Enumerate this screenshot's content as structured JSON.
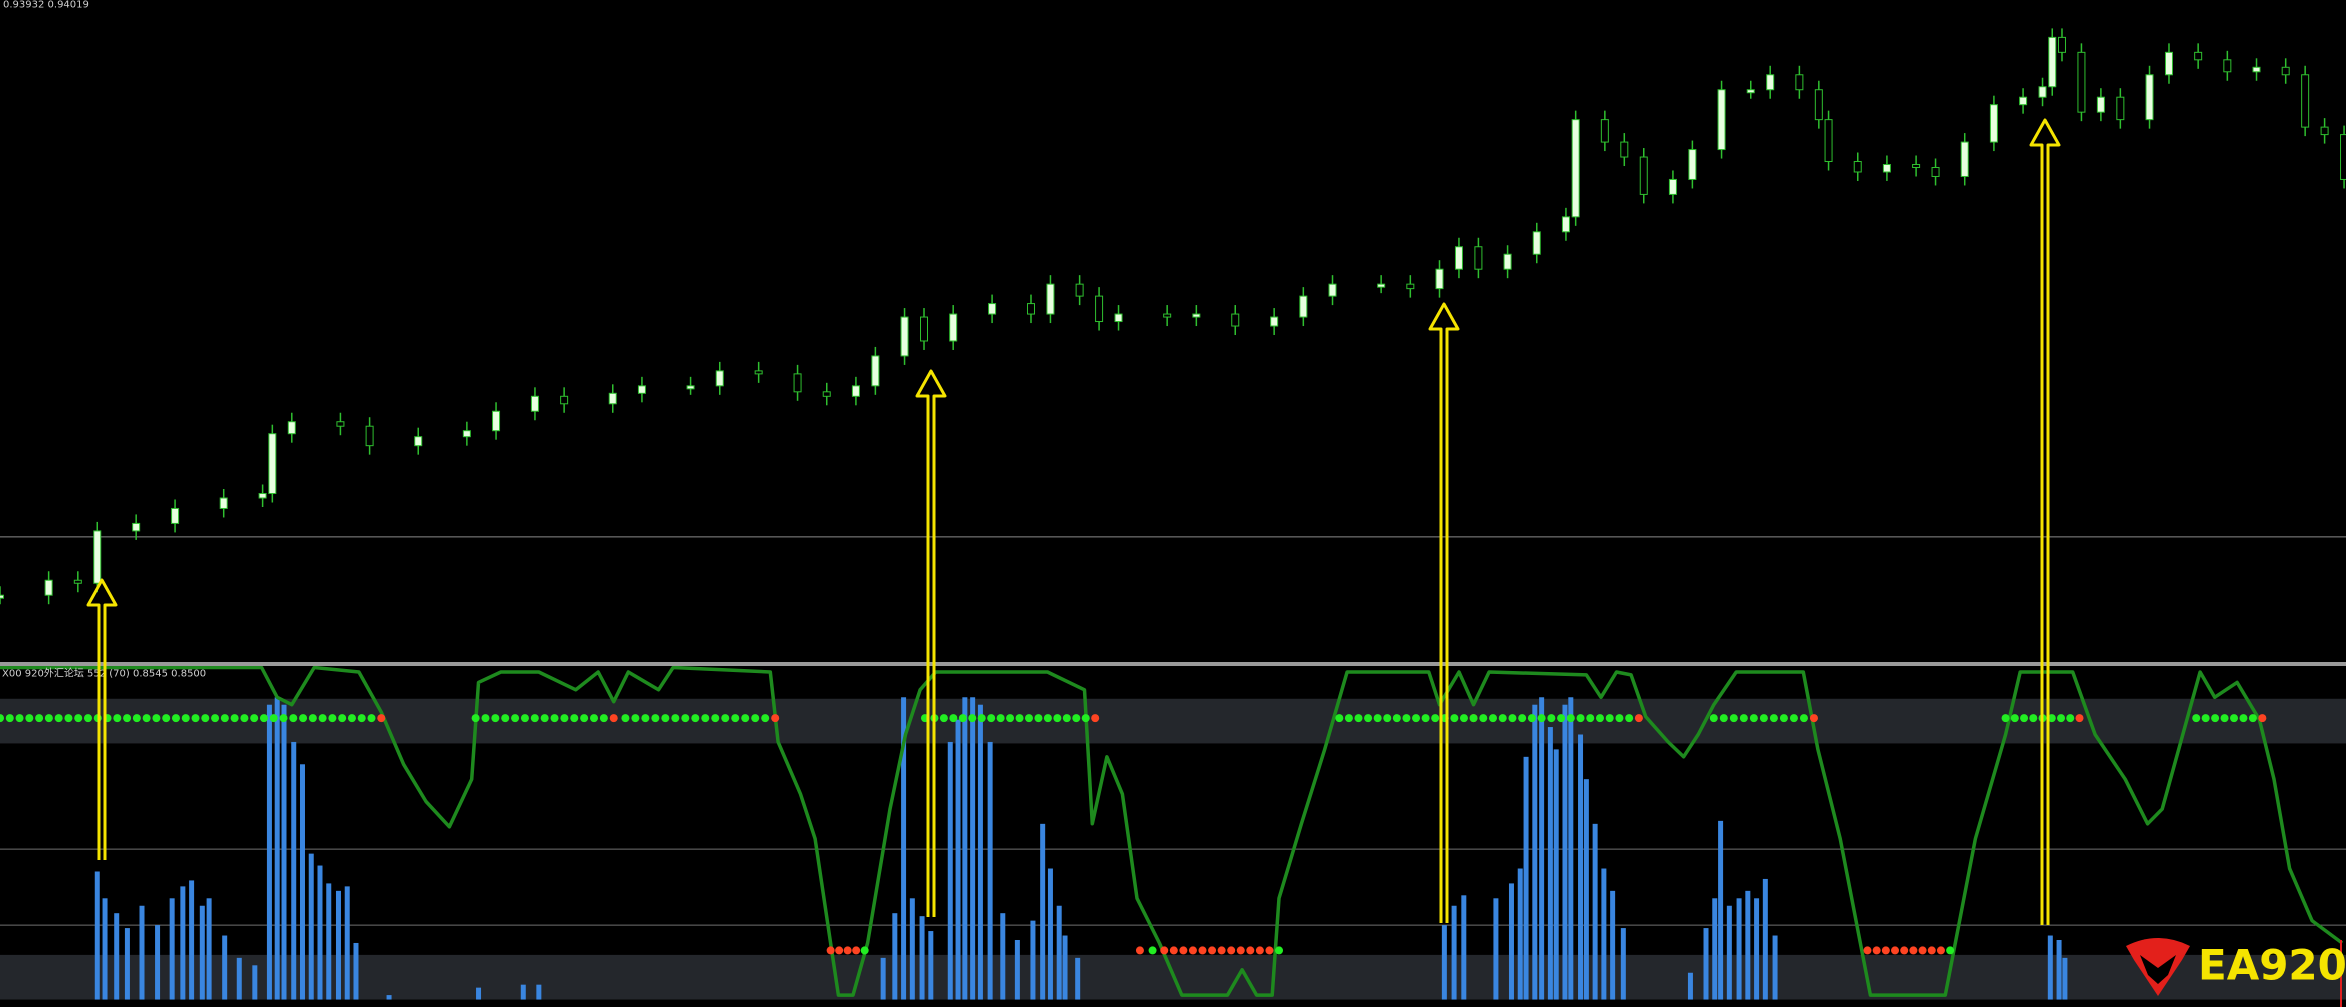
{
  "chart_data": [
    {
      "type": "candlestick",
      "label": "0.93932 0.94019",
      "x": [
        0,
        5,
        8,
        10,
        14,
        18,
        23,
        27,
        28,
        30,
        35,
        38,
        43,
        48,
        51,
        55,
        58,
        63,
        66,
        71,
        74,
        78,
        82,
        85,
        88,
        90,
        93,
        95,
        98,
        102,
        106,
        108,
        111,
        113,
        115,
        120,
        123,
        127,
        131,
        134,
        137,
        142,
        145,
        148,
        150,
        152,
        155,
        158,
        161,
        162,
        165,
        167,
        169,
        172,
        174,
        177,
        180,
        182,
        185,
        187,
        188,
        191,
        194,
        197,
        199,
        202,
        205,
        208,
        210,
        211,
        212,
        214,
        216,
        218,
        221,
        223,
        226,
        229,
        232,
        235,
        237,
        239,
        241
      ],
      "values": [
        52,
        62,
        60,
        95,
        100,
        110,
        117,
        120,
        160,
        168,
        165,
        152,
        158,
        162,
        175,
        185,
        180,
        187,
        192,
        192,
        202,
        200,
        188,
        185,
        192,
        212,
        238,
        222,
        240,
        247,
        240,
        260,
        252,
        235,
        240,
        238,
        240,
        232,
        238,
        252,
        260,
        260,
        257,
        270,
        285,
        270,
        280,
        295,
        305,
        370,
        355,
        345,
        320,
        330,
        350,
        390,
        390,
        400,
        390,
        370,
        342,
        335,
        340,
        338,
        332,
        355,
        380,
        385,
        392,
        425,
        415,
        375,
        385,
        370,
        400,
        415,
        410,
        402,
        405,
        400,
        365,
        360,
        330
      ],
      "color": "#2fbf2f",
      "up_color": "#e8ffe0",
      "xlim": [
        0,
        241.2
      ],
      "ylim": [
        6,
        450
      ],
      "hline": 91
    },
    {
      "type": "histogram-oscillator",
      "label": "X00 920外汇论坛 552 (70) 0.8545 0.8500",
      "xlim": [
        0,
        241.2
      ],
      "ylim": [
        -5,
        224
      ],
      "bands": [
        [
          172,
          202
        ],
        [
          0,
          30
        ]
      ],
      "levels": [
        101,
        50
      ],
      "histogram": {
        "color": "#3a86e0",
        "x": [
          10.0,
          10.8,
          12.0,
          13.1,
          14.6,
          16.2,
          17.7,
          18.8,
          19.7,
          20.8,
          21.5,
          23.1,
          24.6,
          26.2,
          27.7,
          28.5,
          29.2,
          30.2,
          31.1,
          32.0,
          32.9,
          33.8,
          34.8,
          35.7,
          36.6,
          40.0,
          49.2,
          53.8,
          55.4,
          90.8,
          92.0,
          92.9,
          93.8,
          94.8,
          95.7,
          97.7,
          98.5,
          99.2,
          100.0,
          100.8,
          101.8,
          103.1,
          104.6,
          106.2,
          107.2,
          108.0,
          108.9,
          109.5,
          110.8,
          148.5,
          149.5,
          150.5,
          153.8,
          155.4,
          156.3,
          156.9,
          157.8,
          158.5,
          159.4,
          160.0,
          160.9,
          161.5,
          162.5,
          163.1,
          164.0,
          164.9,
          165.8,
          166.9,
          173.8,
          175.4,
          176.3,
          176.9,
          177.8,
          178.8,
          179.7,
          180.6,
          181.5,
          182.5,
          210.8,
          211.7,
          212.3
        ],
        "values": [
          86,
          68,
          58,
          48,
          63,
          50,
          68,
          76,
          80,
          63,
          68,
          43,
          28,
          23,
          198,
          203,
          198,
          173,
          158,
          98,
          90,
          78,
          73,
          76,
          38,
          3,
          8,
          10,
          10,
          28,
          58,
          203,
          68,
          56,
          46,
          173,
          188,
          203,
          203,
          198,
          173,
          58,
          40,
          53,
          118,
          88,
          63,
          43,
          28,
          50,
          63,
          70,
          68,
          78,
          88,
          163,
          198,
          203,
          183,
          168,
          198,
          203,
          178,
          148,
          118,
          88,
          73,
          48,
          18,
          48,
          68,
          120,
          63,
          68,
          73,
          68,
          81,
          43,
          43,
          40,
          28
        ]
      },
      "oscillator": {
        "color": "#1e8a1e",
        "x": [
          0,
          26.9,
          28.5,
          30.0,
          32.3,
          36.9,
          39.2,
          41.5,
          43.8,
          46.2,
          48.5,
          49.2,
          51.5,
          55.4,
          59.2,
          61.5,
          63.1,
          64.6,
          67.7,
          69.2,
          79.2,
          80.0,
          82.3,
          83.8,
          85.4,
          86.2,
          87.7,
          89.2,
          91.5,
          93.1,
          94.6,
          96.2,
          107.7,
          111.5,
          112.3,
          113.8,
          115.4,
          116.9,
          119.2,
          121.5,
          126.2,
          127.7,
          129.2,
          130.8,
          131.5,
          133.8,
          136.2,
          138.5,
          146.9,
          148.0,
          150.0,
          151.5,
          153.1,
          163.1,
          164.6,
          166.2,
          167.7,
          169.2,
          171.5,
          173.1,
          174.6,
          176.2,
          178.5,
          185.4,
          186.9,
          189.2,
          192.3,
          200.0,
          203.1,
          206.2,
          207.7,
          213.1,
          215.4,
          218.5,
          220.8,
          222.3,
          226.2,
          227.7,
          230.0,
          232.3,
          233.8,
          235.4,
          237.7,
          240.8
        ],
        "values": [
          223,
          223,
          203,
          198,
          223,
          220,
          193,
          158,
          133,
          116,
          148,
          213,
          220,
          220,
          208,
          220,
          200,
          220,
          208,
          223,
          220,
          173,
          138,
          108,
          38,
          3,
          3,
          38,
          128,
          178,
          208,
          220,
          220,
          208,
          118,
          163,
          138,
          68,
          38,
          3,
          3,
          20,
          3,
          3,
          68,
          118,
          168,
          220,
          220,
          198,
          220,
          198,
          220,
          218,
          203,
          220,
          218,
          190,
          173,
          163,
          178,
          198,
          220,
          220,
          168,
          108,
          3,
          3,
          108,
          178,
          220,
          220,
          178,
          148,
          118,
          128,
          220,
          203,
          213,
          188,
          148,
          88,
          53,
          38
        ]
      },
      "dot_rows": [
        {
          "level": 189,
          "color": "#22ee22",
          "end_color": "#ff4422",
          "segments": [
            [
              0,
              39.2
            ],
            [
              48.9,
              63.1
            ],
            [
              64.3,
              79.7
            ],
            [
              95.1,
              112.6
            ],
            [
              137.7,
              151.5
            ],
            [
              151.5,
              168.5
            ],
            [
              176.2,
              186.5
            ],
            [
              206.2,
              213.8
            ],
            [
              225.8,
              232.6
            ]
          ]
        },
        {
          "level": 33,
          "color": "#ff4422",
          "end_color": "#22ee22",
          "segments": [
            [
              85.4,
              88.9
            ],
            [
              117.2,
              118.5
            ],
            [
              119.7,
              131.5
            ],
            [
              192,
              200.5
            ]
          ]
        }
      ]
    }
  ],
  "logo": "EA920"
}
